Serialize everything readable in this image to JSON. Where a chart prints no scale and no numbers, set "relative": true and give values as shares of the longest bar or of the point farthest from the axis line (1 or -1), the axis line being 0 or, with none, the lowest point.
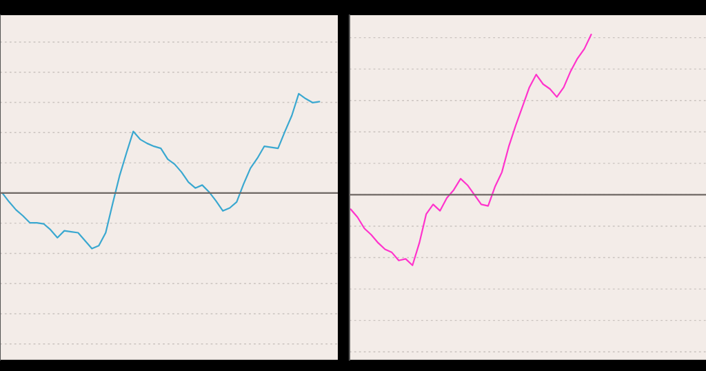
{
  "chart_data": [
    {
      "type": "line",
      "relative": true,
      "grid": "y",
      "line_style": "solid",
      "categories": [
        null,
        null,
        null,
        null,
        null,
        null,
        null,
        null,
        null,
        null,
        null,
        null,
        null,
        null,
        null,
        null,
        null,
        null,
        null,
        null,
        null,
        null,
        null,
        null,
        null,
        null,
        null,
        null,
        null,
        null,
        null,
        null,
        null,
        null,
        null,
        null,
        null,
        null,
        null,
        null,
        null,
        null,
        null,
        null,
        null,
        null,
        null
      ],
      "series": [
        {
          "color": "#3aa8d0",
          "values": [
            0,
            -0.09,
            -0.17,
            -0.23,
            -0.3,
            -0.3,
            -0.31,
            -0.37,
            -0.45,
            -0.38,
            -0.39,
            -0.4,
            -0.48,
            -0.56,
            -0.53,
            -0.4,
            -0.11,
            0.17,
            0.4,
            0.62,
            0.54,
            0.5,
            0.47,
            0.45,
            0.34,
            0.29,
            0.21,
            0.11,
            0.05,
            0.08,
            0.01,
            -0.08,
            -0.18,
            -0.15,
            -0.09,
            0.09,
            0.25,
            0.35,
            0.47,
            0.46,
            0.45,
            0.62,
            0.78,
            1.0,
            0.95,
            0.91,
            0.92
          ]
        }
      ]
    },
    {
      "type": "line",
      "relative": true,
      "grid": "y",
      "line_style": "solid",
      "categories": [
        null,
        null,
        null,
        null,
        null,
        null,
        null,
        null,
        null,
        null,
        null,
        null,
        null,
        null,
        null,
        null,
        null,
        null,
        null,
        null,
        null,
        null,
        null,
        null,
        null,
        null,
        null,
        null,
        null,
        null,
        null,
        null,
        null,
        null,
        null,
        null
      ],
      "series": [
        {
          "color": "#ff33cc",
          "values": [
            -0.09,
            -0.14,
            -0.21,
            -0.25,
            -0.3,
            -0.34,
            -0.36,
            -0.41,
            -0.4,
            -0.44,
            -0.3,
            -0.12,
            -0.06,
            -0.1,
            -0.02,
            0.03,
            0.1,
            0.06,
            0.0,
            -0.06,
            -0.07,
            0.05,
            0.14,
            0.3,
            0.43,
            0.55,
            0.67,
            0.75,
            0.69,
            0.66,
            0.61,
            0.67,
            0.77,
            0.85,
            0.91,
            1.0
          ]
        }
      ]
    }
  ]
}
